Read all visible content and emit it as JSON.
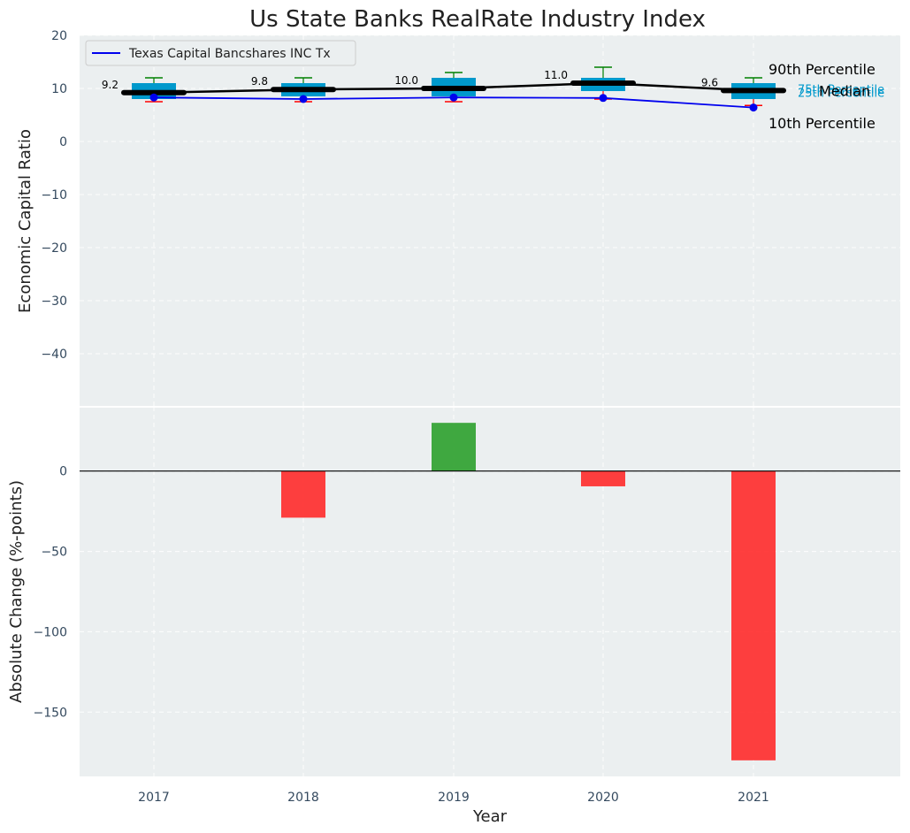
{
  "chart_data": [
    {
      "type": "box",
      "title": "Us State Banks RealRate Industry Index",
      "ylabel": "Economic Capital Ratio",
      "xlabel": "",
      "ylim": [
        -50,
        20
      ],
      "yticks": [
        20,
        10,
        0,
        -10,
        -20,
        -30,
        -40
      ],
      "categories": [
        "2017",
        "2018",
        "2019",
        "2020",
        "2021"
      ],
      "percentile_10": [
        7.5,
        7.5,
        7.5,
        8.0,
        6.8
      ],
      "percentile_25": [
        8.0,
        8.5,
        8.5,
        9.5,
        8.0
      ],
      "median": [
        9.2,
        9.8,
        10.0,
        11.0,
        9.6
      ],
      "percentile_75": [
        11.0,
        11.0,
        12.0,
        12.0,
        11.0
      ],
      "percentile_90": [
        12.0,
        12.0,
        13.0,
        14.0,
        12.0
      ],
      "median_labels": [
        "9.2",
        "9.8",
        "10.0",
        "11.0",
        "9.6"
      ],
      "series": [
        {
          "name": "Texas Capital Bancshares INC Tx",
          "values": [
            8.3,
            8.0,
            8.3,
            8.2,
            6.4
          ],
          "color": "#0000ee"
        }
      ],
      "annotations": {
        "p90": "90th Percentile",
        "p75": "75th Percentile",
        "median": "Median",
        "p25": "25th Percentile",
        "p10": "10th Percentile"
      },
      "colors": {
        "box": "#0099cc",
        "median": "#000000",
        "p90": "#008000",
        "p10": "#ff0000",
        "background": "#ebeff0"
      }
    },
    {
      "type": "bar",
      "xlabel": "Year",
      "ylabel": "Absolute Change (%-points)",
      "ylim": [
        -190,
        40
      ],
      "yticks": [
        0,
        -50,
        -100,
        -150
      ],
      "categories": [
        "2017",
        "2018",
        "2019",
        "2020",
        "2021"
      ],
      "values": [
        0,
        -29,
        30,
        -9.5,
        -180
      ],
      "colors": {
        "positive": "#2ca02c",
        "negative": "#ff2a2a"
      }
    }
  ]
}
